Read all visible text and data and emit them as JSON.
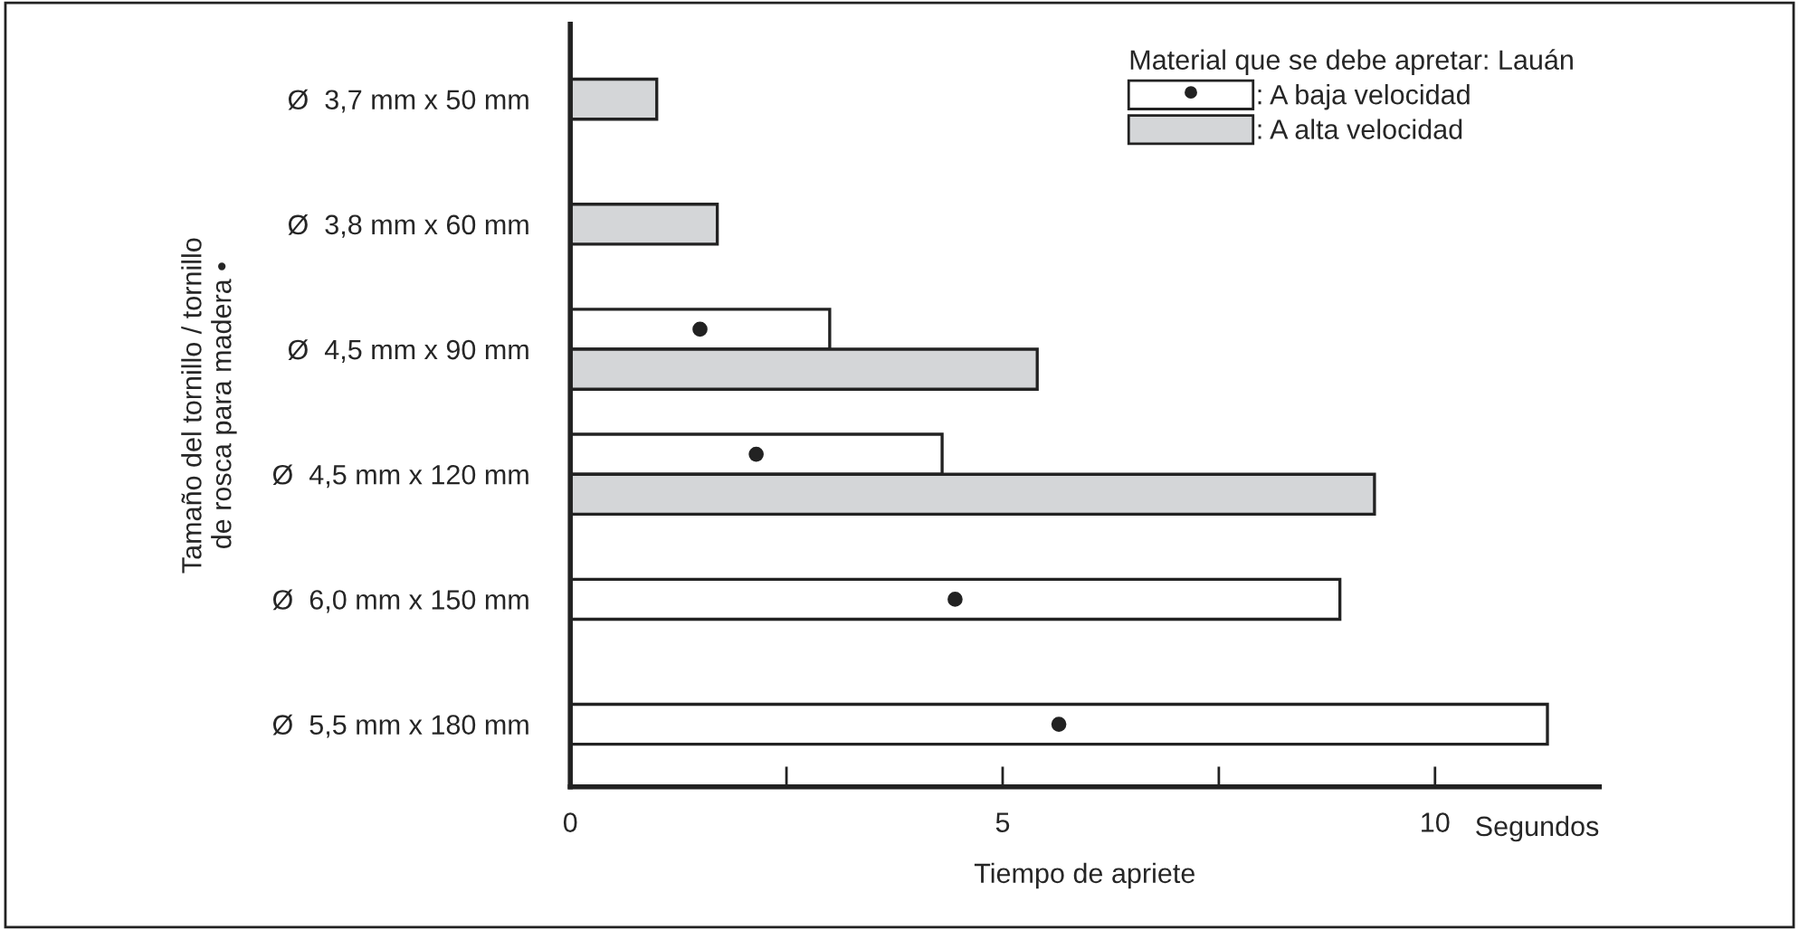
{
  "chart_data": {
    "type": "bar",
    "orientation": "horizontal",
    "xlabel": "Tiempo de apriete",
    "ylabel": "Tamaño del tornillo / tornillo\nde rosca para madera •",
    "legend_title": "Material que se debe apretar: Lauán",
    "categories": [
      "Ø  3,7 mm x 50 mm",
      "Ø  3,8 mm x 60 mm",
      "Ø  4,5 mm x 90 mm",
      "Ø  4,5 mm x 120 mm",
      "Ø  6,0 mm x 150 mm",
      "Ø  5,5 mm x 180 mm"
    ],
    "series": [
      {
        "name": ": A baja velocidad",
        "color": "#ffffff",
        "marker": "circle",
        "values": [
          null,
          null,
          3.0,
          4.3,
          8.9,
          11.3
        ]
      },
      {
        "name": ": A alta velocidad",
        "color": "#d4d6d8",
        "values": [
          1.0,
          1.7,
          5.4,
          9.3,
          null,
          null
        ]
      }
    ],
    "xlim": [
      0,
      11.9
    ],
    "xticks": [
      0,
      {
        "value": 2.5,
        "label": null
      },
      5,
      {
        "value": 7.5,
        "label": null
      },
      10
    ],
    "annotations": [
      "Segundos"
    ],
    "legend": "top right",
    "grid": false
  }
}
